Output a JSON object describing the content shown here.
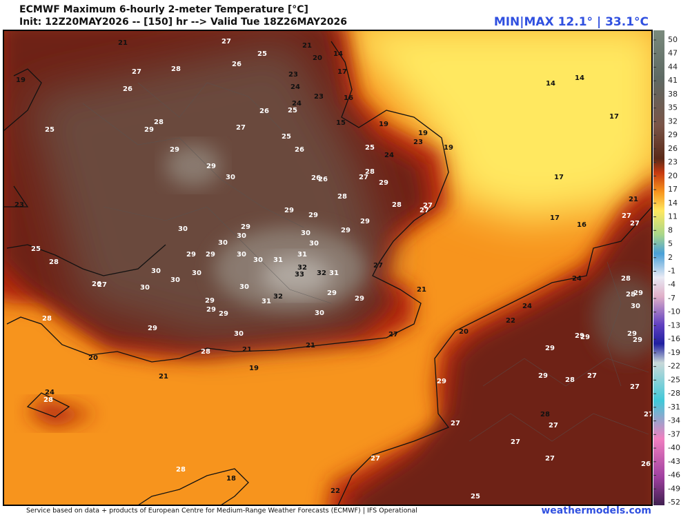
{
  "header": {
    "title": "ECMWF Maximum 6-hourly 2-meter Temperature [°C]",
    "subtitle": "Init: 12Z20MAY2026 -- [150] hr --> Valid Tue 18Z26MAY2026",
    "minmax": "MIN|MAX 12.1° | 33.1°C"
  },
  "colorbar": {
    "ticks": [
      50,
      47,
      44,
      41,
      38,
      35,
      32,
      29,
      26,
      23,
      20,
      17,
      14,
      11,
      8,
      5,
      2,
      -1,
      -4,
      -7,
      -10,
      -13,
      -16,
      -19,
      -22,
      -25,
      -28,
      -31,
      -34,
      -37,
      -40,
      -43,
      -46,
      -49,
      -52
    ]
  },
  "map_labels": [
    21,
    25,
    21,
    20,
    14,
    27,
    28,
    26,
    19,
    26,
    23,
    17,
    24,
    23,
    16,
    26,
    25,
    24,
    28,
    29,
    27,
    15,
    19,
    19,
    23,
    19,
    14,
    14,
    17,
    25,
    25,
    29,
    26,
    25,
    24,
    29,
    30,
    28,
    27,
    26,
    26,
    29,
    28,
    17,
    28,
    27,
    27,
    23,
    21,
    27,
    27,
    17,
    16,
    29,
    29,
    30,
    29,
    30,
    30,
    29,
    29,
    25,
    30,
    30,
    28,
    29,
    29,
    30,
    30,
    31,
    31,
    32,
    32,
    31,
    33,
    27,
    30,
    30,
    30,
    26,
    27,
    30,
    30,
    32,
    31,
    29,
    29,
    21,
    24,
    28,
    28,
    29,
    30,
    29,
    29,
    29,
    30,
    24,
    28,
    29,
    22,
    20,
    27,
    30,
    29,
    29,
    29,
    29,
    21,
    21,
    29,
    28,
    20,
    19,
    21,
    29,
    29,
    28,
    27,
    27,
    24,
    28,
    28,
    27,
    27,
    27,
    27,
    27,
    27,
    26,
    28,
    18,
    22,
    25,
    27
  ],
  "footer": {
    "credit": "Service based on data + products of European Centre for Medium-Range Weather Forecasts (ECMWF) | IFS Operational",
    "site": "weathermodels.com"
  }
}
